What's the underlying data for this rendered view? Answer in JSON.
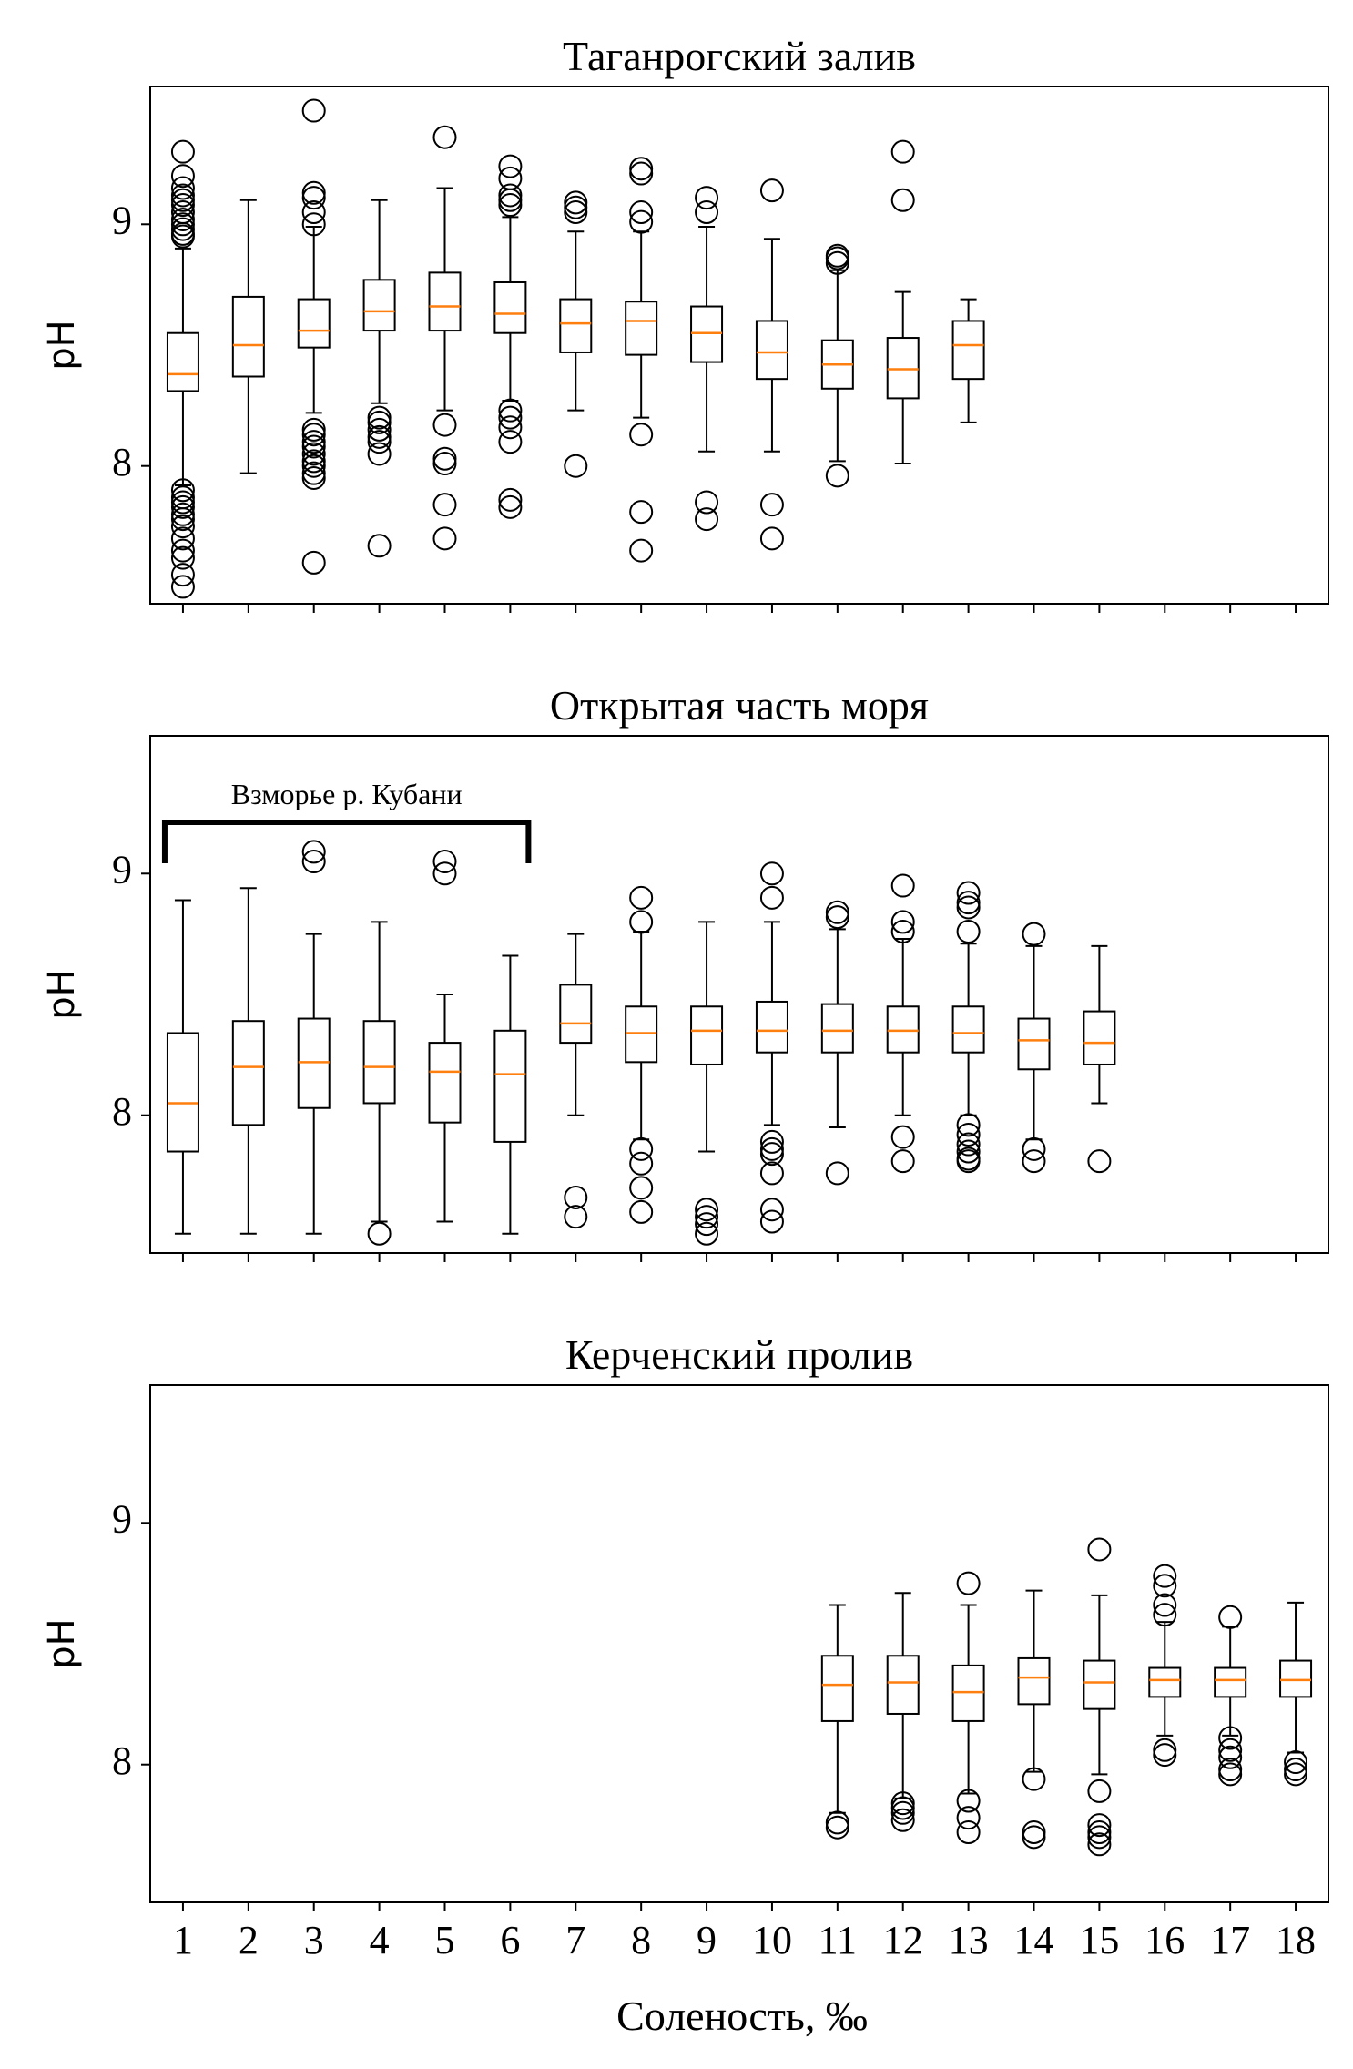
{
  "xlabel": "Соленость, ‰",
  "x_ticks": [
    "1",
    "2",
    "3",
    "4",
    "5",
    "6",
    "7",
    "8",
    "9",
    "10",
    "11",
    "12",
    "13",
    "14",
    "15",
    "16",
    "17",
    "18"
  ],
  "colors": {
    "median": "#ff7f0e",
    "box": "#000000"
  },
  "chart_data": [
    {
      "type": "boxplot",
      "title": "Таганрогский залив",
      "ylabel": "pH",
      "yticks": [
        "8",
        "9"
      ],
      "ylim": [
        7.43,
        9.57
      ],
      "xlim": [
        0.5,
        18.5
      ],
      "annotation": null,
      "boxes": [
        {
          "x": 1,
          "q1": 8.31,
          "median": 8.38,
          "q3": 8.55,
          "wlo": 7.92,
          "whi": 8.9,
          "fliers": [
            9.3,
            9.2,
            9.15,
            9.12,
            9.1,
            9.08,
            9.05,
            9.02,
            9.0,
            8.98,
            8.96,
            8.95,
            7.9,
            7.87,
            7.85,
            7.83,
            7.8,
            7.78,
            7.75,
            7.7,
            7.65,
            7.62,
            7.55,
            7.5
          ]
        },
        {
          "x": 2,
          "q1": 8.37,
          "median": 8.5,
          "q3": 8.7,
          "wlo": 7.97,
          "whi": 9.1,
          "fliers": []
        },
        {
          "x": 3,
          "q1": 8.49,
          "median": 8.56,
          "q3": 8.69,
          "wlo": 8.22,
          "whi": 8.99,
          "fliers": [
            9.47,
            9.13,
            9.11,
            9.05,
            9.0,
            8.15,
            8.13,
            8.1,
            8.08,
            8.05,
            8.02,
            8.0,
            7.97,
            7.95,
            7.6
          ]
        },
        {
          "x": 4,
          "q1": 8.56,
          "median": 8.64,
          "q3": 8.77,
          "wlo": 8.26,
          "whi": 9.1,
          "fliers": [
            8.2,
            8.18,
            8.15,
            8.12,
            8.1,
            8.05,
            7.67
          ]
        },
        {
          "x": 5,
          "q1": 8.56,
          "median": 8.66,
          "q3": 8.8,
          "wlo": 8.23,
          "whi": 9.15,
          "fliers": [
            9.36,
            8.17,
            8.03,
            8.01,
            7.84,
            7.7
          ]
        },
        {
          "x": 6,
          "q1": 8.55,
          "median": 8.63,
          "q3": 8.76,
          "wlo": 8.27,
          "whi": 9.03,
          "fliers": [
            9.24,
            9.19,
            9.12,
            9.1,
            9.08,
            8.23,
            8.2,
            8.16,
            8.1,
            7.86,
            7.83
          ]
        },
        {
          "x": 7,
          "q1": 8.47,
          "median": 8.59,
          "q3": 8.69,
          "wlo": 8.23,
          "whi": 8.97,
          "fliers": [
            9.09,
            9.07,
            9.05,
            8.0
          ]
        },
        {
          "x": 8,
          "q1": 8.46,
          "median": 8.6,
          "q3": 8.68,
          "wlo": 8.2,
          "whi": 8.97,
          "fliers": [
            9.23,
            9.21,
            9.05,
            9.01,
            8.13,
            7.81,
            7.65
          ]
        },
        {
          "x": 9,
          "q1": 8.43,
          "median": 8.55,
          "q3": 8.66,
          "wlo": 8.06,
          "whi": 8.99,
          "fliers": [
            9.11,
            9.05,
            7.85,
            7.78
          ]
        },
        {
          "x": 10,
          "q1": 8.36,
          "median": 8.47,
          "q3": 8.6,
          "wlo": 8.06,
          "whi": 8.94,
          "fliers": [
            9.14,
            7.84,
            7.7
          ]
        },
        {
          "x": 11,
          "q1": 8.32,
          "median": 8.42,
          "q3": 8.52,
          "wlo": 8.02,
          "whi": 8.81,
          "fliers": [
            8.87,
            8.86,
            8.84,
            7.96
          ]
        },
        {
          "x": 12,
          "q1": 8.28,
          "median": 8.4,
          "q3": 8.53,
          "wlo": 8.01,
          "whi": 8.72,
          "fliers": [
            9.3,
            9.1
          ]
        },
        {
          "x": 13,
          "q1": 8.36,
          "median": 8.5,
          "q3": 8.6,
          "wlo": 8.18,
          "whi": 8.69,
          "fliers": []
        }
      ]
    },
    {
      "type": "boxplot",
      "title": "Открытая часть моря",
      "ylabel": "pH",
      "yticks": [
        "8",
        "9"
      ],
      "ylim": [
        7.43,
        9.57
      ],
      "xlim": [
        0.5,
        18.5
      ],
      "annotation": {
        "text": "Взморье р. Кубани",
        "from": 1,
        "to": 6
      },
      "boxes": [
        {
          "x": 1,
          "q1": 7.85,
          "median": 8.05,
          "q3": 8.34,
          "wlo": 7.51,
          "whi": 8.89,
          "fliers": []
        },
        {
          "x": 2,
          "q1": 7.96,
          "median": 8.2,
          "q3": 8.39,
          "wlo": 7.51,
          "whi": 8.94,
          "fliers": []
        },
        {
          "x": 3,
          "q1": 8.03,
          "median": 8.22,
          "q3": 8.4,
          "wlo": 7.51,
          "whi": 8.75,
          "fliers": [
            9.09,
            9.05
          ]
        },
        {
          "x": 4,
          "q1": 8.05,
          "median": 8.2,
          "q3": 8.39,
          "wlo": 7.56,
          "whi": 8.8,
          "fliers": [
            7.51
          ]
        },
        {
          "x": 5,
          "q1": 7.97,
          "median": 8.18,
          "q3": 8.3,
          "wlo": 7.56,
          "whi": 8.5,
          "fliers": [
            9.05,
            9.0
          ]
        },
        {
          "x": 6,
          "q1": 7.89,
          "median": 8.17,
          "q3": 8.35,
          "wlo": 7.51,
          "whi": 8.66,
          "fliers": []
        },
        {
          "x": 7,
          "q1": 8.3,
          "median": 8.38,
          "q3": 8.54,
          "wlo": 8.0,
          "whi": 8.75,
          "fliers": [
            7.66,
            7.58
          ]
        },
        {
          "x": 8,
          "q1": 8.22,
          "median": 8.34,
          "q3": 8.45,
          "wlo": 7.9,
          "whi": 8.76,
          "fliers": [
            8.9,
            8.8,
            7.86,
            7.8,
            7.7,
            7.6
          ]
        },
        {
          "x": 9,
          "q1": 8.21,
          "median": 8.35,
          "q3": 8.45,
          "wlo": 7.85,
          "whi": 8.8,
          "fliers": [
            7.61,
            7.58,
            7.55,
            7.51
          ]
        },
        {
          "x": 10,
          "q1": 8.26,
          "median": 8.35,
          "q3": 8.47,
          "wlo": 7.96,
          "whi": 8.8,
          "fliers": [
            9.0,
            8.9,
            7.89,
            7.86,
            7.84,
            7.76,
            7.61,
            7.56
          ]
        },
        {
          "x": 11,
          "q1": 8.26,
          "median": 8.35,
          "q3": 8.46,
          "wlo": 7.95,
          "whi": 8.77,
          "fliers": [
            8.84,
            8.82,
            7.76
          ]
        },
        {
          "x": 12,
          "q1": 8.26,
          "median": 8.35,
          "q3": 8.45,
          "wlo": 8.0,
          "whi": 8.73,
          "fliers": [
            8.95,
            8.8,
            8.76,
            7.91,
            7.81
          ]
        },
        {
          "x": 13,
          "q1": 8.26,
          "median": 8.34,
          "q3": 8.45,
          "wlo": 8.0,
          "whi": 8.71,
          "fliers": [
            8.92,
            8.88,
            8.86,
            8.76,
            7.96,
            7.92,
            7.88,
            7.85,
            7.82,
            7.81
          ]
        },
        {
          "x": 14,
          "q1": 8.19,
          "median": 8.31,
          "q3": 8.4,
          "wlo": 7.9,
          "whi": 8.7,
          "fliers": [
            8.75,
            7.86,
            7.81
          ]
        },
        {
          "x": 15,
          "q1": 8.21,
          "median": 8.3,
          "q3": 8.43,
          "wlo": 8.05,
          "whi": 8.7,
          "fliers": [
            7.81
          ]
        }
      ]
    },
    {
      "type": "boxplot",
      "title": "Керченский пролив",
      "ylabel": "pH",
      "yticks": [
        "8",
        "9"
      ],
      "ylim": [
        7.43,
        9.57
      ],
      "xlim": [
        0.5,
        18.5
      ],
      "annotation": null,
      "boxes": [
        {
          "x": 11,
          "q1": 8.18,
          "median": 8.33,
          "q3": 8.45,
          "wlo": 7.8,
          "whi": 8.66,
          "fliers": [
            7.76,
            7.74
          ]
        },
        {
          "x": 12,
          "q1": 8.21,
          "median": 8.34,
          "q3": 8.45,
          "wlo": 7.86,
          "whi": 8.71,
          "fliers": [
            7.84,
            7.82,
            7.8,
            7.77
          ]
        },
        {
          "x": 13,
          "q1": 8.18,
          "median": 8.3,
          "q3": 8.41,
          "wlo": 7.88,
          "whi": 8.66,
          "fliers": [
            8.75,
            7.85,
            7.78,
            7.72
          ]
        },
        {
          "x": 14,
          "q1": 8.25,
          "median": 8.36,
          "q3": 8.44,
          "wlo": 7.97,
          "whi": 8.72,
          "fliers": [
            7.94,
            7.72,
            7.7
          ]
        },
        {
          "x": 15,
          "q1": 8.23,
          "median": 8.34,
          "q3": 8.43,
          "wlo": 7.96,
          "whi": 8.7,
          "fliers": [
            8.89,
            7.89,
            7.75,
            7.72,
            7.7,
            7.67
          ]
        },
        {
          "x": 16,
          "q1": 8.28,
          "median": 8.35,
          "q3": 8.4,
          "wlo": 8.12,
          "whi": 8.59,
          "fliers": [
            8.78,
            8.74,
            8.66,
            8.62,
            8.06,
            8.04
          ]
        },
        {
          "x": 17,
          "q1": 8.28,
          "median": 8.35,
          "q3": 8.4,
          "wlo": 8.12,
          "whi": 8.57,
          "fliers": [
            8.61,
            8.11,
            8.06,
            8.03,
            7.98,
            7.96
          ]
        },
        {
          "x": 18,
          "q1": 8.28,
          "median": 8.35,
          "q3": 8.43,
          "wlo": 8.05,
          "whi": 8.67,
          "fliers": [
            8.01,
            7.98,
            7.96
          ]
        }
      ]
    }
  ]
}
